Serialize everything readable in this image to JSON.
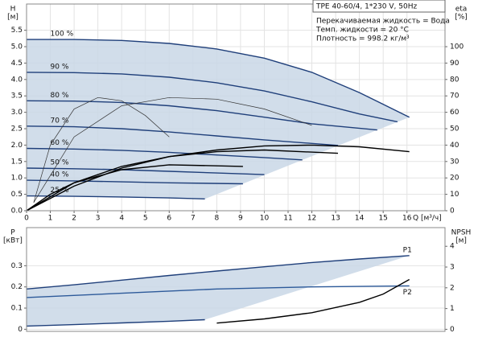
{
  "chart_data": [
    {
      "type": "line",
      "title": "TPE 40-60/4, 1*230 V, 50Hz",
      "annotations": [
        "Перекачиваемая жидкость = Вода",
        "Темп. жидкости = 20 °C",
        "Плотность = 998.2 кг/м³"
      ],
      "ylabel": "H",
      "yunit": "[м]",
      "y2label": "eta",
      "y2unit": "[%]",
      "xlabel": "Q [м³/ч]",
      "xlim": [
        0,
        17.6
      ],
      "xticks": [
        0,
        1,
        2,
        3,
        4,
        5,
        6,
        7,
        8,
        9,
        10,
        11,
        12,
        13,
        14,
        15,
        16
      ],
      "ylim": [
        0,
        6.3
      ],
      "yticks": [
        {
          "value": 0,
          "label": "0.0"
        },
        0.5,
        {
          "value": 1,
          "label": "1.0"
        },
        1.5,
        {
          "value": 2,
          "label": "2.0"
        },
        2.5,
        {
          "value": 3,
          "label": "3.0"
        },
        3.5,
        {
          "value": 4,
          "label": "4.0"
        },
        4.5,
        {
          "value": 5,
          "label": "5.0"
        },
        5.5
      ],
      "y2lim": [
        0,
        126
      ],
      "y2ticks": [
        0,
        10,
        20,
        30,
        40,
        50,
        60,
        70,
        80,
        90,
        100
      ],
      "grid": true,
      "area_color": "#c9d7e6",
      "series": [
        {
          "name": "100 %",
          "color": "#1f3f7a",
          "x": [
            0,
            2,
            4,
            6,
            8,
            10,
            12,
            14,
            16.1
          ],
          "values": [
            5.22,
            5.22,
            5.19,
            5.1,
            4.93,
            4.65,
            4.22,
            3.6,
            2.85
          ]
        },
        {
          "name": "90 %",
          "color": "#1f3f7a",
          "x": [
            0,
            2,
            4,
            6,
            8,
            10,
            12,
            14,
            15.6
          ],
          "values": [
            4.22,
            4.21,
            4.17,
            4.07,
            3.9,
            3.65,
            3.32,
            2.95,
            2.71
          ]
        },
        {
          "name": "80 %",
          "color": "#1f3f7a",
          "x": [
            0,
            2,
            4,
            6,
            8,
            10,
            12,
            14.75
          ],
          "values": [
            3.35,
            3.34,
            3.3,
            3.2,
            3.05,
            2.85,
            2.65,
            2.46
          ]
        },
        {
          "name": "70 %",
          "color": "#1f3f7a",
          "x": [
            0,
            2,
            4,
            6,
            8,
            10,
            13.1
          ],
          "values": [
            2.58,
            2.56,
            2.5,
            2.4,
            2.28,
            2.16,
            1.99
          ]
        },
        {
          "name": "60 %",
          "color": "#1f3f7a",
          "x": [
            0,
            2,
            4,
            6,
            8,
            10,
            11.6
          ],
          "values": [
            1.9,
            1.88,
            1.84,
            1.78,
            1.7,
            1.62,
            1.55
          ]
        },
        {
          "name": "50 %",
          "color": "#1f3f7a",
          "x": [
            0,
            2,
            4,
            6,
            8,
            10
          ],
          "values": [
            1.3,
            1.28,
            1.25,
            1.2,
            1.15,
            1.1
          ]
        },
        {
          "name": "40 %",
          "color": "#1f3f7a",
          "x": [
            0,
            2,
            4,
            6,
            9.1
          ],
          "values": [
            0.93,
            0.91,
            0.88,
            0.85,
            0.82
          ]
        },
        {
          "name": "25 %",
          "color": "#1f3f7a",
          "x": [
            0,
            2,
            4,
            6,
            7.5
          ],
          "values": [
            0.45,
            0.44,
            0.42,
            0.39,
            0.36
          ]
        },
        {
          "color": "#000000",
          "axis": "y2",
          "x": [
            0,
            2,
            4,
            6,
            8,
            10,
            12,
            14,
            16.1
          ],
          "values": [
            0,
            15,
            26,
            33,
            37,
            39.5,
            40,
            39,
            36
          ]
        },
        {
          "color": "#000000",
          "axis": "y2",
          "x": [
            0,
            2,
            4,
            6,
            8,
            10,
            13.1
          ],
          "values": [
            0,
            17,
            27,
            33,
            36,
            37,
            35
          ]
        },
        {
          "color": "#000000",
          "axis": "y2",
          "x": [
            0,
            1,
            2,
            4,
            6,
            9.1
          ],
          "values": [
            0,
            10,
            17,
            25,
            28,
            27
          ]
        },
        {
          "color": "#333333",
          "axis": "y2",
          "thin": true,
          "x": [
            0.3,
            1,
            2,
            3,
            4,
            5,
            6
          ],
          "values": [
            5,
            40,
            62,
            69,
            67,
            58,
            45
          ]
        },
        {
          "color": "#333333",
          "axis": "y2",
          "thin": true,
          "x": [
            0.3,
            2,
            4,
            6,
            8,
            10,
            12
          ],
          "values": [
            5,
            45,
            64,
            69,
            68,
            62,
            52
          ]
        }
      ]
    },
    {
      "type": "line",
      "ylabel": "P",
      "yunit": "[кВт]",
      "y2label": "NPSH",
      "y2unit": "[м]",
      "xlim": [
        0,
        17.6
      ],
      "ylim": [
        -0.01,
        0.48
      ],
      "yticks": [
        0,
        0.1,
        0.2,
        0.3
      ],
      "y2lim": [
        -0.1,
        4.9
      ],
      "y2ticks": [
        0,
        1,
        2,
        3,
        4
      ],
      "grid": true,
      "area_color": "#c9d7e6",
      "series": [
        {
          "name": "P1",
          "color": "#1f3f7a",
          "x": [
            0,
            2,
            4,
            6,
            8,
            10,
            12,
            14,
            16.1
          ],
          "values": [
            0.19,
            0.21,
            0.232,
            0.254,
            0.275,
            0.295,
            0.315,
            0.332,
            0.348
          ]
        },
        {
          "name": "P2",
          "color": "#2d5a9a",
          "x": [
            0,
            4,
            8,
            12,
            16.1
          ],
          "values": [
            0.15,
            0.17,
            0.19,
            0.2,
            0.205
          ]
        },
        {
          "color": "#1f3f7a",
          "x": [
            0,
            2,
            4,
            6,
            7.5
          ],
          "values": [
            0.015,
            0.022,
            0.03,
            0.038,
            0.045
          ]
        },
        {
          "color": "#000000",
          "axis": "y2",
          "x": [
            8,
            10,
            12,
            14,
            15,
            16.1
          ],
          "values": [
            0.3,
            0.5,
            0.8,
            1.3,
            1.7,
            2.4
          ]
        }
      ]
    }
  ]
}
